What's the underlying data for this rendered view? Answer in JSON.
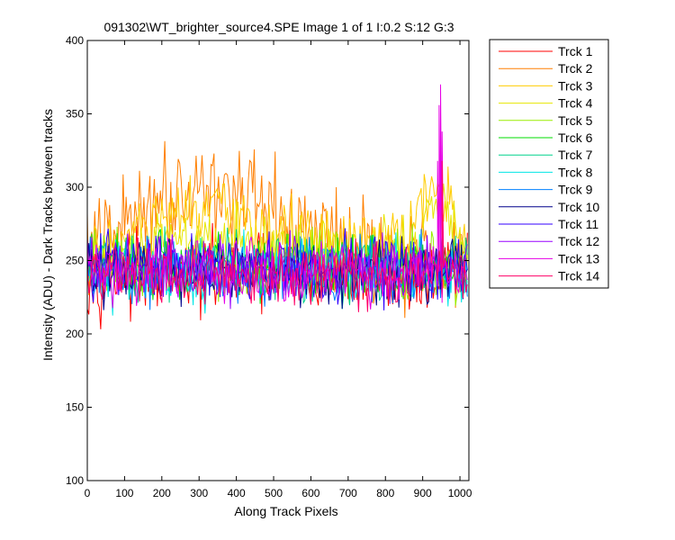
{
  "figure": {
    "background": "#ffffff"
  },
  "chart_data": {
    "type": "line",
    "title": "091302\\WT_brighter_source4.SPE  Image 1 of 1  I:0.2  S:12  G:3",
    "xlabel": "Along Track Pixels",
    "ylabel": "Intensity (ADU) - Dark Tracks between tracks",
    "xlim": [
      0,
      1024
    ],
    "ylim": [
      100,
      400
    ],
    "xticks": [
      0,
      100,
      200,
      300,
      400,
      500,
      600,
      700,
      800,
      900,
      1000
    ],
    "yticks": [
      100,
      150,
      200,
      250,
      300,
      350,
      400
    ],
    "grid": false,
    "legend_position": "outside-right",
    "x_start": 0,
    "x_end": 1023,
    "x_step": 4,
    "series": [
      {
        "name": "Trck 1",
        "color": "#ff0000",
        "envelope": [
          [
            0,
            240
          ],
          [
            1023,
            240
          ]
        ],
        "spread": 18,
        "values": [
          240,
          262,
          223,
          251,
          236,
          246,
          229,
          257,
          242,
          234,
          255,
          227,
          248,
          239,
          253,
          231,
          244,
          259,
          226,
          250,
          237,
          247,
          232,
          258,
          241,
          235,
          254,
          228,
          249,
          238,
          245,
          201,
          252,
          230,
          243,
          256,
          224,
          248,
          236,
          241,
          259,
          233,
          246,
          222,
          251,
          238,
          244,
          230,
          255,
          240,
          227,
          249,
          236,
          253,
          232,
          245,
          241,
          258,
          226,
          247,
          238,
          250,
          234,
          243,
          256,
          229,
          246,
          237,
          252,
          231,
          244,
          240,
          257,
          225,
          248,
          235,
          251,
          242,
          233,
          254,
          228,
          246,
          239,
          250,
          237,
          243,
          230,
          255,
          241,
          227,
          249,
          236,
          252,
          234,
          245,
          238,
          256,
          229,
          247,
          240,
          253,
          226,
          244,
          237,
          250,
          232,
          258,
          241,
          235,
          246,
          229,
          252,
          238,
          243,
          231,
          255,
          240,
          227,
          248,
          236,
          251,
          233,
          246,
          242,
          257,
          224,
          249,
          239,
          244,
          230,
          254,
          237,
          247,
          241,
          228,
          252,
          235,
          246,
          239,
          256,
          231,
          243,
          238,
          250,
          226,
          245,
          240,
          253,
          233,
          248,
          236,
          242,
          229,
          255,
          241,
          234,
          247,
          238,
          251,
          230,
          244,
          240,
          257,
          227,
          246,
          235,
          252,
          241,
          232,
          249,
          238,
          244,
          231,
          254,
          236,
          247,
          240,
          229,
          253,
          237,
          245,
          242,
          228,
          251,
          233,
          246,
          239,
          256,
          230,
          243,
          237,
          249,
          226,
          248,
          241,
          253,
          234,
          245,
          238,
          244,
          231,
          255,
          240,
          228,
          247,
          236,
          252,
          233,
          243,
          239,
          250,
          230,
          246,
          238,
          254,
          227,
          244,
          241,
          251,
          232,
          248,
          236,
          243,
          239,
          257,
          229,
          246,
          240,
          252,
          233,
          245,
          237,
          249,
          230,
          254,
          241,
          227,
          247,
          238,
          243,
          235,
          256,
          231,
          244,
          240,
          250,
          228,
          248,
          236,
          253,
          233,
          245,
          239,
          242,
          230,
          255,
          241,
          226,
          247,
          237,
          251,
          234,
          244,
          240,
          249,
          231,
          246,
          238,
          253,
          229,
          243,
          240,
          248
        ]
      },
      {
        "name": "Trck 2",
        "color": "#ff7f00",
        "envelope": [
          [
            0,
            258
          ],
          [
            80,
            268
          ],
          [
            150,
            290
          ],
          [
            220,
            296
          ],
          [
            300,
            302
          ],
          [
            380,
            298
          ],
          [
            460,
            284
          ],
          [
            560,
            272
          ],
          [
            660,
            265
          ],
          [
            760,
            258
          ],
          [
            860,
            255
          ],
          [
            1023,
            252
          ]
        ],
        "spread": 24,
        "values": []
      },
      {
        "name": "Trck 3",
        "color": "#ffcc00",
        "envelope": [
          [
            0,
            250
          ],
          [
            120,
            268
          ],
          [
            240,
            280
          ],
          [
            340,
            282
          ],
          [
            460,
            272
          ],
          [
            560,
            264
          ],
          [
            680,
            260
          ],
          [
            800,
            258
          ],
          [
            860,
            262
          ],
          [
            900,
            290
          ],
          [
            930,
            300
          ],
          [
            960,
            290
          ],
          [
            990,
            268
          ],
          [
            1023,
            260
          ]
        ],
        "spread": 18,
        "values": []
      },
      {
        "name": "Trck 4",
        "color": "#e6e600",
        "envelope": [
          [
            0,
            248
          ],
          [
            200,
            262
          ],
          [
            340,
            266
          ],
          [
            480,
            258
          ],
          [
            700,
            254
          ],
          [
            880,
            260
          ],
          [
            920,
            288
          ],
          [
            950,
            296
          ],
          [
            980,
            274
          ],
          [
            1023,
            256
          ]
        ],
        "spread": 16,
        "values": []
      },
      {
        "name": "Trck 5",
        "color": "#99ee00",
        "envelope": [
          [
            0,
            248
          ],
          [
            1023,
            246
          ]
        ],
        "spread": 16,
        "values": []
      },
      {
        "name": "Trck 6",
        "color": "#00dd00",
        "envelope": [
          [
            0,
            246
          ],
          [
            1023,
            245
          ]
        ],
        "spread": 16,
        "values": []
      },
      {
        "name": "Trck 7",
        "color": "#00d28c",
        "envelope": [
          [
            0,
            245
          ],
          [
            1023,
            244
          ]
        ],
        "spread": 16,
        "values": []
      },
      {
        "name": "Trck 8",
        "color": "#00e6e6",
        "envelope": [
          [
            0,
            244
          ],
          [
            1023,
            243
          ]
        ],
        "spread": 16,
        "values": []
      },
      {
        "name": "Trck 9",
        "color": "#0080ff",
        "envelope": [
          [
            0,
            244
          ],
          [
            1023,
            243
          ]
        ],
        "spread": 16,
        "values": []
      },
      {
        "name": "Trck 10",
        "color": "#00008b",
        "envelope": [
          [
            0,
            243
          ],
          [
            1023,
            242
          ]
        ],
        "spread": 15,
        "values": []
      },
      {
        "name": "Trck 11",
        "color": "#3300ff",
        "envelope": [
          [
            0,
            246
          ],
          [
            1023,
            244
          ]
        ],
        "spread": 16,
        "values": []
      },
      {
        "name": "Trck 12",
        "color": "#9900ff",
        "envelope": [
          [
            0,
            244
          ],
          [
            1023,
            243
          ]
        ],
        "spread": 15,
        "values": []
      },
      {
        "name": "Trck 13",
        "color": "#e600e6",
        "envelope": [
          [
            0,
            243
          ],
          [
            1023,
            242
          ]
        ],
        "spread": 15,
        "peaks": [
          [
            948,
            370
          ],
          [
            944,
            356
          ],
          [
            952,
            338
          ],
          [
            940,
            318
          ]
        ],
        "values": []
      },
      {
        "name": "Trck 14",
        "color": "#ff0066",
        "envelope": [
          [
            0,
            241
          ],
          [
            1023,
            241
          ]
        ],
        "spread": 14,
        "peaks": [
          [
            952,
            318
          ]
        ],
        "values": []
      }
    ]
  }
}
